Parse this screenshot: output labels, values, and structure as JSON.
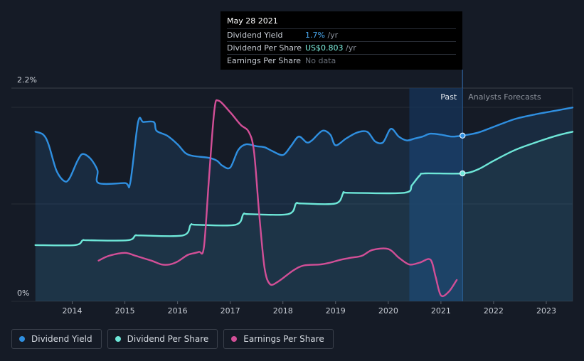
{
  "tooltip": {
    "date": "May 28 2021",
    "rows": [
      {
        "label": "Dividend Yield",
        "value": "1.7%",
        "unit": " /yr"
      },
      {
        "label": "Dividend Per Share",
        "value": "US$0.803",
        "unit": " /yr"
      },
      {
        "label": "Earnings Per Share",
        "value": "No data",
        "unit": ""
      }
    ]
  },
  "legend": {
    "items": [
      {
        "label": "Dividend Yield",
        "color": "#2f8fe0"
      },
      {
        "label": "Dividend Per Share",
        "color": "#6ee7d8"
      },
      {
        "label": "Earnings Per Share",
        "color": "#d24f97"
      }
    ]
  },
  "chart_data": {
    "type": "line",
    "past_label": "Past",
    "forecast_label": "Analysts Forecasts",
    "ytick_labels": {
      "top": "2.2%",
      "bottom": "0%"
    },
    "ylim": [
      0,
      2.2
    ],
    "xlim": [
      2013.25,
      2023.5
    ],
    "xticks": [
      "2014",
      "2015",
      "2016",
      "2017",
      "2018",
      "2019",
      "2020",
      "2021",
      "2022",
      "2023"
    ],
    "past_range": [
      2020.4,
      2021.41
    ],
    "series": [
      {
        "name": "Dividend Yield",
        "color": "#2f8fe0",
        "points": [
          [
            2013.3,
            1.75
          ],
          [
            2013.45,
            1.72
          ],
          [
            2013.55,
            1.62
          ],
          [
            2013.7,
            1.35
          ],
          [
            2013.85,
            1.24
          ],
          [
            2013.95,
            1.27
          ],
          [
            2014.1,
            1.45
          ],
          [
            2014.2,
            1.52
          ],
          [
            2014.35,
            1.47
          ],
          [
            2014.48,
            1.35
          ],
          [
            2014.5,
            1.22
          ],
          [
            2015.0,
            1.22
          ],
          [
            2015.1,
            1.22
          ],
          [
            2015.25,
            1.85
          ],
          [
            2015.35,
            1.85
          ],
          [
            2015.55,
            1.85
          ],
          [
            2015.6,
            1.76
          ],
          [
            2015.8,
            1.71
          ],
          [
            2016.0,
            1.62
          ],
          [
            2016.15,
            1.53
          ],
          [
            2016.3,
            1.5
          ],
          [
            2016.6,
            1.48
          ],
          [
            2016.75,
            1.45
          ],
          [
            2016.85,
            1.4
          ],
          [
            2017.0,
            1.38
          ],
          [
            2017.15,
            1.56
          ],
          [
            2017.3,
            1.62
          ],
          [
            2017.5,
            1.6
          ],
          [
            2017.65,
            1.59
          ],
          [
            2017.8,
            1.55
          ],
          [
            2018.0,
            1.51
          ],
          [
            2018.15,
            1.6
          ],
          [
            2018.3,
            1.7
          ],
          [
            2018.45,
            1.64
          ],
          [
            2018.55,
            1.66
          ],
          [
            2018.75,
            1.76
          ],
          [
            2018.9,
            1.72
          ],
          [
            2019.0,
            1.61
          ],
          [
            2019.2,
            1.68
          ],
          [
            2019.4,
            1.74
          ],
          [
            2019.6,
            1.75
          ],
          [
            2019.75,
            1.65
          ],
          [
            2019.9,
            1.64
          ],
          [
            2020.05,
            1.78
          ],
          [
            2020.2,
            1.7
          ],
          [
            2020.35,
            1.66
          ],
          [
            2020.5,
            1.68
          ],
          [
            2020.65,
            1.7
          ],
          [
            2020.8,
            1.73
          ],
          [
            2021.0,
            1.72
          ],
          [
            2021.2,
            1.7
          ],
          [
            2021.41,
            1.71
          ],
          [
            2021.7,
            1.74
          ],
          [
            2022.0,
            1.8
          ],
          [
            2022.4,
            1.88
          ],
          [
            2022.8,
            1.93
          ],
          [
            2023.2,
            1.97
          ],
          [
            2023.5,
            2.0
          ]
        ]
      },
      {
        "name": "Dividend Per Share",
        "color": "#6ee7d8",
        "points": [
          [
            2013.3,
            0.58
          ],
          [
            2014.05,
            0.58
          ],
          [
            2014.2,
            0.63
          ],
          [
            2014.3,
            0.63
          ],
          [
            2015.05,
            0.63
          ],
          [
            2015.2,
            0.68
          ],
          [
            2015.3,
            0.68
          ],
          [
            2016.1,
            0.68
          ],
          [
            2016.25,
            0.79
          ],
          [
            2016.35,
            0.79
          ],
          [
            2017.1,
            0.79
          ],
          [
            2017.25,
            0.9
          ],
          [
            2017.35,
            0.9
          ],
          [
            2018.1,
            0.9
          ],
          [
            2018.25,
            1.01
          ],
          [
            2018.35,
            1.01
          ],
          [
            2019.0,
            1.01
          ],
          [
            2019.15,
            1.12
          ],
          [
            2019.25,
            1.12
          ],
          [
            2020.3,
            1.12
          ],
          [
            2020.45,
            1.2
          ],
          [
            2020.6,
            1.3
          ],
          [
            2020.7,
            1.32
          ],
          [
            2021.41,
            1.32
          ],
          [
            2021.7,
            1.36
          ],
          [
            2022.0,
            1.45
          ],
          [
            2022.4,
            1.56
          ],
          [
            2022.8,
            1.64
          ],
          [
            2023.2,
            1.71
          ],
          [
            2023.5,
            1.75
          ]
        ]
      },
      {
        "name": "Earnings Per Share",
        "color": "#d24f97",
        "points": [
          [
            2014.5,
            0.42
          ],
          [
            2014.7,
            0.47
          ],
          [
            2015.0,
            0.5
          ],
          [
            2015.2,
            0.47
          ],
          [
            2015.5,
            0.42
          ],
          [
            2015.7,
            0.38
          ],
          [
            2015.85,
            0.38
          ],
          [
            2016.0,
            0.41
          ],
          [
            2016.2,
            0.48
          ],
          [
            2016.4,
            0.51
          ],
          [
            2016.5,
            0.56
          ],
          [
            2016.6,
            1.3
          ],
          [
            2016.7,
            1.98
          ],
          [
            2016.78,
            2.07
          ],
          [
            2017.0,
            1.95
          ],
          [
            2017.2,
            1.82
          ],
          [
            2017.35,
            1.75
          ],
          [
            2017.45,
            1.55
          ],
          [
            2017.55,
            0.9
          ],
          [
            2017.65,
            0.35
          ],
          [
            2017.75,
            0.18
          ],
          [
            2017.9,
            0.2
          ],
          [
            2018.2,
            0.32
          ],
          [
            2018.4,
            0.37
          ],
          [
            2018.7,
            0.38
          ],
          [
            2018.9,
            0.4
          ],
          [
            2019.1,
            0.43
          ],
          [
            2019.3,
            0.45
          ],
          [
            2019.5,
            0.47
          ],
          [
            2019.7,
            0.53
          ],
          [
            2020.0,
            0.54
          ],
          [
            2020.2,
            0.45
          ],
          [
            2020.4,
            0.38
          ],
          [
            2020.6,
            0.4
          ],
          [
            2020.8,
            0.43
          ],
          [
            2020.9,
            0.25
          ],
          [
            2021.0,
            0.06
          ],
          [
            2021.15,
            0.1
          ],
          [
            2021.3,
            0.22
          ]
        ]
      }
    ],
    "markers": [
      {
        "series": "Dividend Yield",
        "x": 2021.41,
        "y": 1.71
      },
      {
        "series": "Dividend Per Share",
        "x": 2021.41,
        "y": 1.32
      }
    ]
  }
}
